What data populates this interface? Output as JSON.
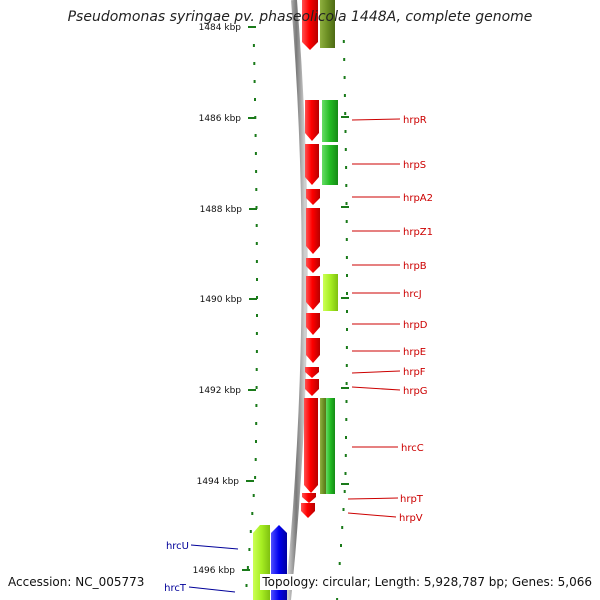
{
  "title": "Pseudomonas syringae pv. phaseolicola 1448A, complete genome",
  "footer": {
    "accession": "Accession: NC_005773",
    "summary": "Topology: circular; Length: 5,928,787 bp; Genes: 5,066"
  },
  "colors": {
    "red_gene": "#ff1010",
    "green_gene": "#33cc33",
    "olive_gene": "#6b8e23",
    "lime_gene": "#aaee22",
    "blue_gene": "#1010ee",
    "ruler": "#1a7a1a",
    "backbone": "#888888",
    "red_label": "#cc0000",
    "blue_label": "#000099"
  },
  "ruler": {
    "ticks": [
      {
        "label": "1484 kbp"
      },
      {
        "label": "1486 kbp"
      },
      {
        "label": "1488 kbp"
      },
      {
        "label": "1490 kbp"
      },
      {
        "label": "1492 kbp"
      },
      {
        "label": "1494 kbp"
      },
      {
        "label": "1496 kbp"
      }
    ]
  },
  "gene_labels": [
    {
      "name": "hrpR",
      "color": "red"
    },
    {
      "name": "hrpS",
      "color": "red"
    },
    {
      "name": "hrpA2",
      "color": "red"
    },
    {
      "name": "hrpZ1",
      "color": "red"
    },
    {
      "name": "hrpB",
      "color": "red"
    },
    {
      "name": "hrcJ",
      "color": "red"
    },
    {
      "name": "hrpD",
      "color": "red"
    },
    {
      "name": "hrpE",
      "color": "red"
    },
    {
      "name": "hrpF",
      "color": "red"
    },
    {
      "name": "hrpG",
      "color": "red"
    },
    {
      "name": "hrcC",
      "color": "red"
    },
    {
      "name": "hrpT",
      "color": "red"
    },
    {
      "name": "hrpV",
      "color": "red"
    },
    {
      "name": "hrcU",
      "color": "blue"
    },
    {
      "name": "hrcT",
      "color": "blue"
    }
  ]
}
